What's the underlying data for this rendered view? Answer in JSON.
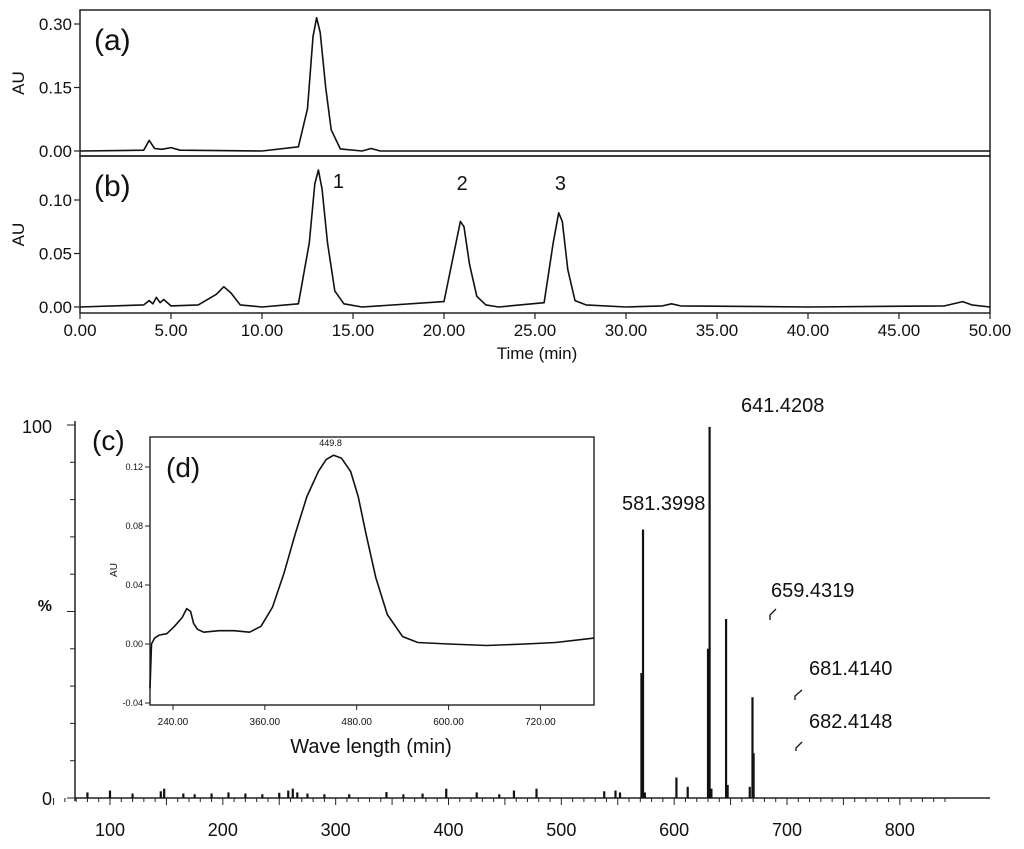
{
  "chart_data": [
    {
      "panel": "(a)",
      "type": "line",
      "ylabel": "AU",
      "ylim": [
        -0.01,
        0.33
      ],
      "yticks": [
        "0.00",
        "0.15",
        "0.30"
      ],
      "xlim": [
        0,
        50
      ],
      "series": [
        {
          "x": [
            0,
            3.5,
            3.8,
            4.1,
            4.5,
            5.0,
            5.5,
            10,
            12.0,
            12.5,
            12.8,
            13.0,
            13.2,
            13.5,
            13.8,
            14.3,
            15.5,
            16.0,
            16.5,
            20,
            30,
            40,
            50
          ],
          "values": [
            0.0,
            0.002,
            0.025,
            0.006,
            0.004,
            0.008,
            0.002,
            0.0,
            0.01,
            0.1,
            0.27,
            0.315,
            0.28,
            0.15,
            0.05,
            0.005,
            0.0,
            0.006,
            0.0,
            0.0,
            0.0,
            0.0,
            0.0
          ]
        }
      ]
    },
    {
      "panel": "(b)",
      "type": "line",
      "ylabel": "AU",
      "ylim": [
        -0.005,
        0.13
      ],
      "yticks": [
        "0.00",
        "0.05",
        "0.10"
      ],
      "xlim": [
        0,
        50
      ],
      "xlabel": "Time (min)",
      "xticks": [
        "0.00",
        "5.00",
        "10.00",
        "15.00",
        "20.00",
        "25.00",
        "30.00",
        "35.00",
        "40.00",
        "45.00",
        "50.00"
      ],
      "series": [
        {
          "x": [
            0,
            3.5,
            3.8,
            4.0,
            4.2,
            4.4,
            4.6,
            5.0,
            6.5,
            7.5,
            7.9,
            8.3,
            8.8,
            10,
            12.0,
            12.6,
            12.9,
            13.1,
            13.3,
            13.6,
            14.0,
            14.5,
            15.5,
            20.0,
            20.6,
            20.9,
            21.1,
            21.4,
            21.8,
            22.3,
            23.0,
            25.5,
            26.0,
            26.3,
            26.5,
            26.8,
            27.2,
            27.8,
            30,
            32.0,
            32.5,
            33.0,
            40,
            47.5,
            48.5,
            49.0,
            50
          ],
          "values": [
            0.0,
            0.002,
            0.006,
            0.003,
            0.009,
            0.004,
            0.007,
            0.001,
            0.002,
            0.012,
            0.019,
            0.013,
            0.002,
            0.0,
            0.003,
            0.06,
            0.115,
            0.128,
            0.11,
            0.06,
            0.015,
            0.003,
            0.0,
            0.005,
            0.055,
            0.08,
            0.075,
            0.04,
            0.01,
            0.002,
            0.0,
            0.004,
            0.06,
            0.088,
            0.08,
            0.035,
            0.006,
            0.002,
            0.0,
            0.001,
            0.003,
            0.001,
            0.0,
            0.001,
            0.005,
            0.002,
            0.0
          ]
        }
      ],
      "annotations": [
        {
          "text": "1",
          "x": 13.1
        },
        {
          "text": "2",
          "x": 21.0
        },
        {
          "text": "3",
          "x": 26.4
        }
      ]
    },
    {
      "panel": "(c)",
      "type": "bar",
      "ylabel": "%",
      "yticks": [
        "0",
        "100"
      ],
      "xlim": [
        40,
        850
      ],
      "ylim": [
        0,
        100
      ],
      "xticks": [
        "100",
        "200",
        "300",
        "400",
        "500",
        "600",
        "700",
        "800"
      ],
      "values_mz": [
        [
          80,
          1.5
        ],
        [
          100,
          2.0
        ],
        [
          120,
          1.2
        ],
        [
          145,
          1.8
        ],
        [
          148,
          2.5
        ],
        [
          165,
          1.2
        ],
        [
          175,
          1.0
        ],
        [
          190,
          1.2
        ],
        [
          205,
          1.5
        ],
        [
          220,
          1.2
        ],
        [
          235,
          1.0
        ],
        [
          250,
          1.4
        ],
        [
          258,
          2.0
        ],
        [
          262,
          2.5
        ],
        [
          266,
          1.5
        ],
        [
          275,
          1.2
        ],
        [
          290,
          1.0
        ],
        [
          312,
          1.0
        ],
        [
          345,
          1.6
        ],
        [
          360,
          1.0
        ],
        [
          377,
          1.2
        ],
        [
          398,
          2.5
        ],
        [
          425,
          1.5
        ],
        [
          445,
          1.0
        ],
        [
          458,
          2.0
        ],
        [
          478,
          2.5
        ],
        [
          538,
          1.8
        ],
        [
          548,
          2.0
        ],
        [
          552,
          1.5
        ],
        [
          571,
          33.5
        ],
        [
          572.4,
          72.0
        ],
        [
          574,
          1.5
        ],
        [
          602,
          5.5
        ],
        [
          612,
          3.0
        ],
        [
          630,
          40.0
        ],
        [
          631.4,
          99.5
        ],
        [
          633,
          2.5
        ],
        [
          646,
          48.0
        ],
        [
          647.4,
          3.5
        ],
        [
          667,
          3.0
        ],
        [
          669.4,
          27.0
        ],
        [
          670.4,
          12.0
        ]
      ],
      "annotations": [
        {
          "text": "581.3998",
          "x": 571
        },
        {
          "text": "641.4208",
          "x": 631.4
        },
        {
          "text": "659.4319",
          "x": 646
        },
        {
          "text": "681.4140",
          "x": 669.4
        },
        {
          "text": "682.4148",
          "x": 670.4
        }
      ]
    },
    {
      "panel": "(d)",
      "type": "line",
      "ylabel": "AU",
      "xlabel": "Wave length (min)",
      "xlim": [
        210,
        790
      ],
      "ylim": [
        -0.04,
        0.13
      ],
      "xticks": [
        "240.00",
        "360.00",
        "480.00",
        "600.00",
        "720.00"
      ],
      "yticks": [
        "-0.04",
        "0.00",
        "0.04",
        "0.08",
        "0.12"
      ],
      "peak_label": "449.8",
      "series": [
        {
          "x": [
            210,
            212,
            216,
            222,
            232,
            242,
            252,
            258,
            263,
            267,
            272,
            280,
            300,
            320,
            340,
            355,
            370,
            385,
            400,
            415,
            430,
            440,
            449.8,
            460,
            472,
            482,
            492,
            505,
            520,
            540,
            560,
            600,
            650,
            700,
            740,
            790
          ],
          "values": [
            -0.03,
            0.0,
            0.004,
            0.006,
            0.007,
            0.012,
            0.018,
            0.024,
            0.022,
            0.014,
            0.01,
            0.008,
            0.009,
            0.009,
            0.008,
            0.012,
            0.025,
            0.048,
            0.075,
            0.1,
            0.117,
            0.125,
            0.128,
            0.126,
            0.117,
            0.1,
            0.075,
            0.045,
            0.02,
            0.005,
            0.001,
            0.0,
            -0.001,
            0.0,
            0.001,
            0.004
          ]
        }
      ]
    }
  ]
}
